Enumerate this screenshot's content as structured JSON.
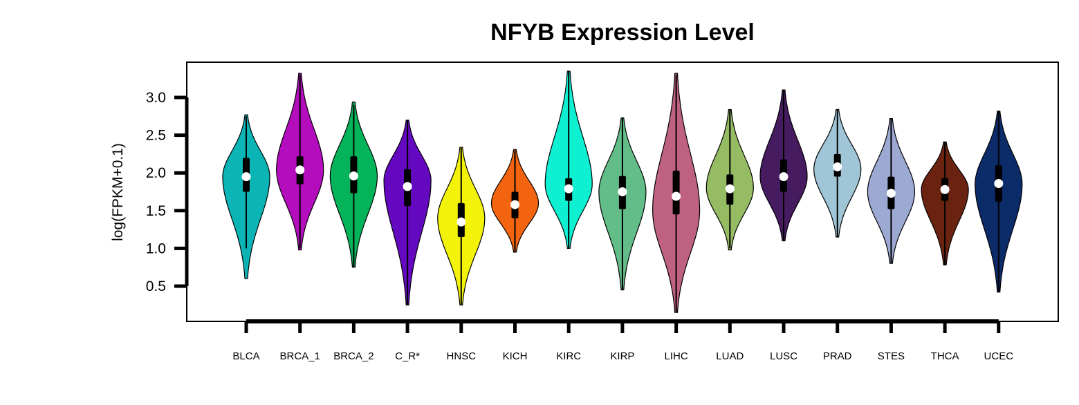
{
  "chart_data": {
    "type": "violin",
    "title": "NFYB Expression Level",
    "xlabel": "",
    "ylabel": "log(FPKM+0.1)",
    "ylim": [
      0.05,
      3.45
    ],
    "yticks": [
      "0.5",
      "1.0",
      "1.5",
      "2.0",
      "2.5",
      "3.0"
    ],
    "categories": [
      "BLCA",
      "BRCA_1",
      "BRCA_2",
      "C_R*",
      "HNSC",
      "KICH",
      "KIRC",
      "KIRP",
      "LIHC",
      "LUAD",
      "LUSC",
      "PRAD",
      "STES",
      "THCA",
      "UCEC"
    ],
    "colors": [
      "#0BB5B5",
      "#B40DBE",
      "#05B45A",
      "#6509C1",
      "#F2F20A",
      "#F2640F",
      "#0FF0D2",
      "#62BD88",
      "#BF6282",
      "#96BC63",
      "#461B60",
      "#9FC5D6",
      "#9BA9D3",
      "#6B2311",
      "#0B2B69"
    ],
    "series": [
      {
        "min": 0.6,
        "q1": 1.75,
        "median": 1.95,
        "q3": 2.2,
        "max": 2.77,
        "mode": 1.95,
        "whisker_lo": 1.0,
        "whisker_hi": 2.75
      },
      {
        "min": 0.98,
        "q1": 1.85,
        "median": 2.04,
        "q3": 2.22,
        "max": 3.32,
        "mode": 2.04,
        "whisker_lo": 1.0,
        "whisker_hi": 3.3
      },
      {
        "min": 0.75,
        "q1": 1.73,
        "median": 1.96,
        "q3": 2.22,
        "max": 2.94,
        "mode": 1.96,
        "whisker_lo": 0.75,
        "whisker_hi": 2.9
      },
      {
        "min": 0.25,
        "q1": 1.56,
        "median": 1.82,
        "q3": 2.05,
        "max": 2.7,
        "mode": 1.9,
        "whisker_lo": 0.25,
        "whisker_hi": 2.7
      },
      {
        "min": 0.25,
        "q1": 1.15,
        "median": 1.35,
        "q3": 1.6,
        "max": 2.34,
        "mode": 1.4,
        "whisker_lo": 0.25,
        "whisker_hi": 2.33
      },
      {
        "min": 0.95,
        "q1": 1.4,
        "median": 1.58,
        "q3": 1.75,
        "max": 2.31,
        "mode": 1.6,
        "whisker_lo": 0.95,
        "whisker_hi": 2.3
      },
      {
        "min": 1.0,
        "q1": 1.63,
        "median": 1.79,
        "q3": 1.93,
        "max": 3.35,
        "mode": 1.85,
        "whisker_lo": 1.0,
        "whisker_hi": 3.35
      },
      {
        "min": 0.45,
        "q1": 1.52,
        "median": 1.75,
        "q3": 1.96,
        "max": 2.73,
        "mode": 1.75,
        "whisker_lo": 0.45,
        "whisker_hi": 2.73
      },
      {
        "min": 0.15,
        "q1": 1.45,
        "median": 1.69,
        "q3": 2.03,
        "max": 3.32,
        "mode": 1.5,
        "whisker_lo": 0.15,
        "whisker_hi": 3.3
      },
      {
        "min": 0.98,
        "q1": 1.58,
        "median": 1.79,
        "q3": 1.98,
        "max": 2.84,
        "mode": 1.8,
        "whisker_lo": 1.0,
        "whisker_hi": 2.84
      },
      {
        "min": 1.1,
        "q1": 1.75,
        "median": 1.95,
        "q3": 2.18,
        "max": 3.1,
        "mode": 1.95,
        "whisker_lo": 1.1,
        "whisker_hi": 3.1
      },
      {
        "min": 1.15,
        "q1": 1.95,
        "median": 2.08,
        "q3": 2.25,
        "max": 2.84,
        "mode": 2.05,
        "whisker_lo": 1.15,
        "whisker_hi": 2.84
      },
      {
        "min": 0.8,
        "q1": 1.52,
        "median": 1.73,
        "q3": 1.95,
        "max": 2.72,
        "mode": 1.75,
        "whisker_lo": 0.8,
        "whisker_hi": 2.72
      },
      {
        "min": 0.78,
        "q1": 1.63,
        "median": 1.78,
        "q3": 1.93,
        "max": 2.41,
        "mode": 1.78,
        "whisker_lo": 0.78,
        "whisker_hi": 2.41
      },
      {
        "min": 0.42,
        "q1": 1.62,
        "median": 1.86,
        "q3": 2.1,
        "max": 2.82,
        "mode": 1.85,
        "whisker_lo": 0.42,
        "whisker_hi": 2.82
      }
    ]
  }
}
